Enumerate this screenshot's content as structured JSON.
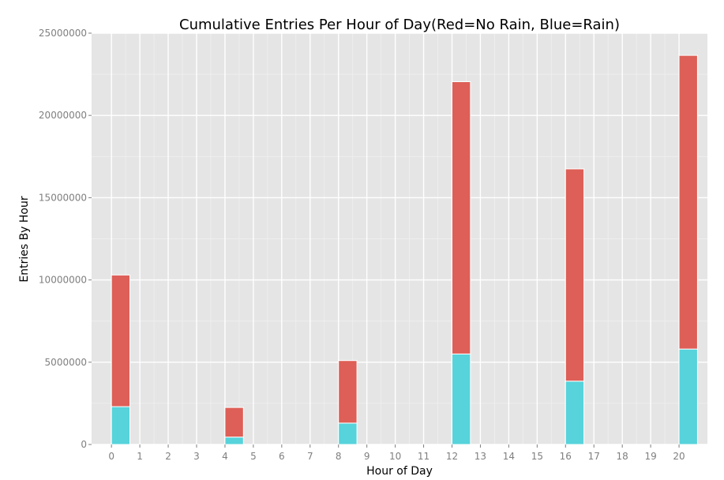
{
  "chart_data": {
    "type": "bar",
    "stacked": true,
    "title": "Cumulative Entries Per Hour of Day(Red=No Rain, Blue=Rain)",
    "xlabel": "Hour of Day",
    "ylabel": "Entries By Hour",
    "categories": [
      0,
      4,
      8,
      12,
      16,
      20
    ],
    "series": [
      {
        "color": "#56d3db",
        "values": [
          2300000,
          450000,
          1300000,
          5500000,
          3850000,
          5800000
        ]
      },
      {
        "color": "#dd5f57",
        "values": [
          8000000,
          1800000,
          3800000,
          16550000,
          12900000,
          17850000
        ]
      }
    ],
    "xlim": [
      -0.7,
      21.0
    ],
    "ylim": [
      0,
      25000000
    ],
    "xticks": [
      0,
      1,
      2,
      3,
      4,
      5,
      6,
      7,
      8,
      9,
      10,
      11,
      12,
      13,
      14,
      15,
      16,
      17,
      18,
      19,
      20
    ],
    "xtick_labels": [
      "0",
      "1",
      "2",
      "3",
      "4",
      "5",
      "6",
      "7",
      "8",
      "9",
      "10",
      "11",
      "12",
      "13",
      "14",
      "15",
      "16",
      "17",
      "18",
      "19",
      "20"
    ],
    "yticks": [
      0,
      5000000,
      10000000,
      15000000,
      20000000,
      25000000
    ],
    "ytick_labels": [
      "0",
      "5000000",
      "10000000",
      "15000000",
      "20000000",
      "25000000"
    ],
    "bar_width_hours": 0.65,
    "grid": true,
    "background": "#e5e5e5",
    "grid_major_color": "#ffffff",
    "grid_minor_color": "#f0f0f0"
  }
}
